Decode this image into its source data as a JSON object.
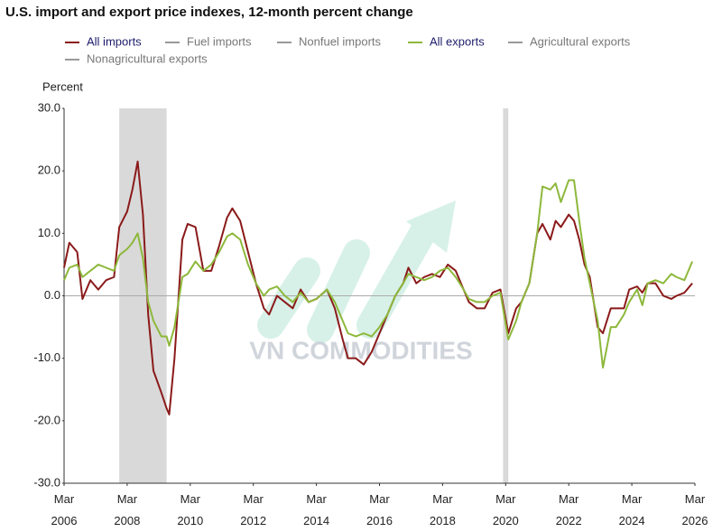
{
  "chart_data": {
    "type": "line",
    "title": "U.S. import and export price indexes, 12-month percent change",
    "y_label": "Percent",
    "watermark": "VN COMMODITIES",
    "x": [
      "2006-03",
      "2006-05",
      "2006-08",
      "2006-10",
      "2007-01",
      "2007-04",
      "2007-07",
      "2007-10",
      "2007-12",
      "2008-03",
      "2008-05",
      "2008-07",
      "2008-09",
      "2008-11",
      "2009-01",
      "2009-04",
      "2009-06",
      "2009-07",
      "2009-09",
      "2009-12",
      "2010-02",
      "2010-05",
      "2010-08",
      "2010-11",
      "2011-02",
      "2011-05",
      "2011-07",
      "2011-10",
      "2012-01",
      "2012-04",
      "2012-07",
      "2012-09",
      "2012-12",
      "2013-03",
      "2013-06",
      "2013-09",
      "2013-12",
      "2014-03",
      "2014-07",
      "2014-10",
      "2015-01",
      "2015-03",
      "2015-06",
      "2015-09",
      "2015-12",
      "2016-03",
      "2016-06",
      "2016-09",
      "2016-12",
      "2017-02",
      "2017-05",
      "2017-08",
      "2017-11",
      "2018-02",
      "2018-05",
      "2018-08",
      "2018-11",
      "2019-01",
      "2019-04",
      "2019-07",
      "2019-10",
      "2020-01",
      "2020-04",
      "2020-07",
      "2020-09",
      "2020-12",
      "2021-03",
      "2021-05",
      "2021-08",
      "2021-10",
      "2021-12",
      "2022-03",
      "2022-05",
      "2022-07",
      "2022-09",
      "2022-11",
      "2023-02",
      "2023-04",
      "2023-07",
      "2023-09",
      "2023-12",
      "2024-02",
      "2024-05",
      "2024-07",
      "2024-09",
      "2024-12",
      "2025-03",
      "2025-06",
      "2025-08",
      "2025-11",
      "2026-02"
    ],
    "series": [
      {
        "name": "All imports",
        "color": "#8b1a1a",
        "values": [
          4.5,
          8.5,
          7,
          -0.5,
          2.5,
          1,
          2.5,
          3,
          11,
          13.5,
          17,
          21.5,
          13,
          -3,
          -12,
          -15.5,
          -18,
          -19,
          -10,
          9,
          11.5,
          11,
          4,
          4,
          8,
          12.5,
          14,
          12,
          7,
          2,
          -2,
          -3,
          0,
          -1,
          -2,
          1,
          -1,
          -0.5,
          1,
          -2,
          -7,
          -10,
          -10,
          -11,
          -9,
          -6,
          -3,
          0,
          2,
          4.5,
          2,
          3,
          3.5,
          3,
          5,
          4,
          1,
          -1,
          -2,
          -2,
          0.5,
          1,
          -6,
          -2,
          -1,
          2,
          10,
          11.5,
          9,
          12,
          11,
          13,
          12,
          9,
          5,
          3,
          -5,
          -6,
          -2,
          -2,
          -2,
          1,
          1.5,
          0.5,
          2,
          2,
          0,
          -0.5,
          0,
          0.5,
          2
        ]
      },
      {
        "name": "All exports",
        "color": "#8db83b",
        "values": [
          2.5,
          4.5,
          5,
          3,
          4,
          5,
          4.5,
          4,
          6.5,
          7.5,
          8.5,
          10,
          6,
          -1,
          -4,
          -6.5,
          -6.5,
          -8,
          -5,
          3,
          3.5,
          5.5,
          4,
          5,
          7,
          9.5,
          10,
          9,
          5,
          2,
          0,
          1,
          1.5,
          0,
          -1,
          0.5,
          -1,
          -0.5,
          1,
          -1,
          -4,
          -6,
          -6.5,
          -6,
          -6.5,
          -5,
          -3,
          0,
          2,
          3.5,
          3,
          2.5,
          3,
          4,
          4.5,
          3,
          1,
          -0.5,
          -1,
          -1,
          0,
          0.5,
          -7,
          -4,
          -1,
          2,
          10,
          17.5,
          17,
          18,
          15,
          18.5,
          18.5,
          12,
          6,
          2,
          -4,
          -11.5,
          -5,
          -5,
          -3,
          -1,
          1,
          -1.5,
          2,
          2.5,
          2,
          3.5,
          3,
          2.5,
          5.5
        ]
      }
    ],
    "inactive_series": [
      "Fuel imports",
      "Nonfuel imports",
      "Agricultural exports",
      "Nonagricultural exports"
    ],
    "inactive_color": "#999999",
    "shaded_periods": [
      [
        "2007-12",
        "2009-06"
      ],
      [
        "2020-02",
        "2020-04"
      ]
    ],
    "shade_color": "#d9d9d9",
    "xlim": [
      "2006-03",
      "2026-03"
    ],
    "xticks": [
      {
        "value": "2006-03",
        "label": "Mar 2006"
      },
      {
        "value": "2008-03",
        "label": "Mar 2008"
      },
      {
        "value": "2010-03",
        "label": "Mar 2010"
      },
      {
        "value": "2012-03",
        "label": "Mar 2012"
      },
      {
        "value": "2014-03",
        "label": "Mar 2014"
      },
      {
        "value": "2016-03",
        "label": "Mar 2016"
      },
      {
        "value": "2018-03",
        "label": "Mar 2018"
      },
      {
        "value": "2020-03",
        "label": "Mar 2020"
      },
      {
        "value": "2022-03",
        "label": "Mar 2022"
      },
      {
        "value": "2024-03",
        "label": "Mar 2024"
      },
      {
        "value": "2026-03",
        "label": "Mar 2026"
      }
    ],
    "ylim": [
      -30,
      30
    ],
    "yticks": [
      {
        "value": -30,
        "label": "-30.0"
      },
      {
        "value": -20,
        "label": "-20.0"
      },
      {
        "value": -10,
        "label": "-10.0"
      },
      {
        "value": 0,
        "label": "0.0"
      },
      {
        "value": 10,
        "label": "10.0"
      },
      {
        "value": 20,
        "label": "20.0"
      },
      {
        "value": 30,
        "label": "30.0"
      }
    ],
    "grid": false
  }
}
